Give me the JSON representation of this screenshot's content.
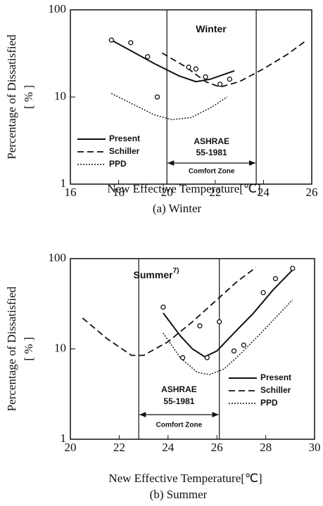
{
  "chart_data": [
    {
      "type": "line",
      "title": "(a) Winter",
      "xlabel": "New Effective Temperature[℃]",
      "ylabel": "Percentage of Dissatisfied",
      "yunit": "[ % ]",
      "log_y": true,
      "xlim": [
        16,
        26
      ],
      "ylim": [
        1,
        100
      ],
      "xticks": [
        16,
        18,
        20,
        22,
        24,
        26
      ],
      "yticks": [
        1,
        10,
        100
      ],
      "legend": "lower left",
      "annotation": "Winter",
      "zone": [
        20,
        23.7
      ],
      "zone_labels": [
        "ASHRAE",
        "55-1981",
        "Comfort Zone"
      ],
      "series": [
        {
          "name": "Present",
          "color": "#111111",
          "dash": "solid",
          "x": [
            17.7,
            18.5,
            19.5,
            20.5,
            21.2,
            21.8,
            22.8
          ],
          "values": [
            45,
            34,
            24,
            17.5,
            15,
            16,
            20
          ]
        },
        {
          "name": "Schiller",
          "color": "#111111",
          "dash": "dashed",
          "x": [
            19.8,
            20.8,
            21.6,
            22.2,
            23,
            24,
            25,
            25.8
          ],
          "values": [
            32,
            22,
            15,
            13,
            15,
            21,
            31,
            45
          ]
        },
        {
          "name": "PPD",
          "color": "#111111",
          "dash": "dotted",
          "x": [
            17.7,
            18.5,
            19.5,
            20.2,
            21,
            21.8,
            22.5
          ],
          "values": [
            11,
            8.5,
            6.2,
            5.5,
            5.8,
            7.5,
            10
          ]
        }
      ],
      "points": {
        "x": [
          17.7,
          18.5,
          19.2,
          19.6,
          20.9,
          21.2,
          21.6,
          22.2,
          22.6
        ],
        "values": [
          45,
          42,
          29,
          10,
          22,
          21,
          17,
          14,
          16
        ]
      }
    },
    {
      "type": "line",
      "title": "(b) Summer",
      "xlabel": "New Effective Temperature[℃]",
      "ylabel": "Percentage of Dissatisfied",
      "yunit": "[ % ]",
      "log_y": true,
      "xlim": [
        20,
        30
      ],
      "ylim": [
        1,
        100
      ],
      "xticks": [
        20,
        22,
        24,
        26,
        28,
        30
      ],
      "yticks": [
        1,
        10,
        100
      ],
      "legend": "lower right",
      "annotation": "Summer",
      "annotation_sup": "7)",
      "zone": [
        22.8,
        26.1
      ],
      "zone_labels": [
        "ASHRAE",
        "55-1981",
        "Comfort Zone"
      ],
      "series": [
        {
          "name": "Present",
          "color": "#111111",
          "dash": "solid",
          "x": [
            23.8,
            24.5,
            25,
            25.5,
            26,
            26.8,
            27.5,
            28.3,
            29.1
          ],
          "values": [
            25,
            14,
            10,
            8.2,
            9.5,
            16,
            25,
            45,
            75
          ]
        },
        {
          "name": "Schiller",
          "color": "#111111",
          "dash": "dashed",
          "x": [
            20.5,
            21.5,
            22.5,
            23,
            24,
            25,
            26,
            26.8,
            27.6
          ],
          "values": [
            22,
            13,
            8.5,
            8.5,
            12,
            20,
            35,
            55,
            80
          ]
        },
        {
          "name": "PPD",
          "color": "#111111",
          "dash": "dotted",
          "x": [
            23.8,
            24.5,
            25.2,
            25.7,
            26.3,
            27,
            28,
            29.1
          ],
          "values": [
            15,
            8,
            5.5,
            5.2,
            6,
            9,
            17,
            35
          ]
        }
      ],
      "points": {
        "x": [
          23.8,
          24.6,
          25.3,
          25.6,
          26.1,
          26.7,
          27.1,
          27.9,
          28.4,
          29.1
        ],
        "values": [
          29,
          8,
          18,
          8,
          20,
          9.5,
          11,
          42,
          60,
          78
        ]
      }
    }
  ]
}
